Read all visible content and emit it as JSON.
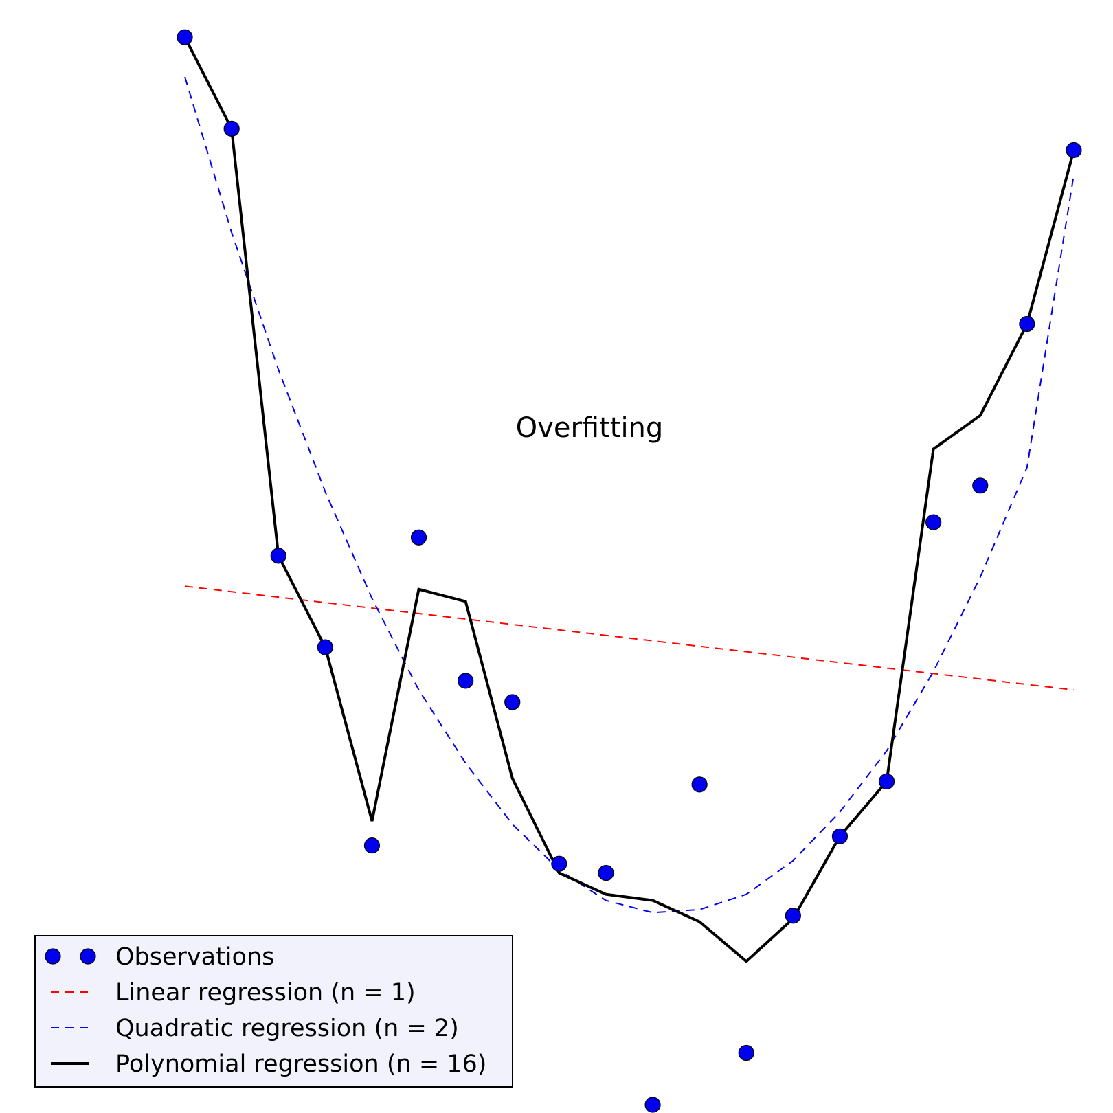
{
  "chart_data": {
    "type": "scatter",
    "title": "",
    "xlabel": "",
    "ylabel": "",
    "axes_visible": false,
    "grid": false,
    "xlim": [
      0.5,
      20.5
    ],
    "ylim": [
      -3.0,
      0.55
    ],
    "annotation": "Overfitting",
    "legend_position": "lower-left",
    "series": [
      {
        "name": "Observations",
        "kind": "markers",
        "color": "#0000ee",
        "x": [
          1,
          2,
          3,
          4,
          5,
          6,
          7,
          8,
          9,
          10,
          11,
          12,
          13,
          14,
          15,
          16,
          17,
          18,
          19,
          20
        ],
        "y": [
          0.5,
          0.2,
          -1.2,
          -1.5,
          -2.15,
          -1.14,
          -1.61,
          -1.68,
          -2.21,
          -2.24,
          -3.0,
          -1.95,
          -2.83,
          -2.38,
          -2.12,
          -1.94,
          -1.09,
          -0.97,
          -0.44,
          0.13
        ]
      },
      {
        "name": "Linear regression (n = 1)",
        "kind": "dashed-line",
        "color": "#ff0000",
        "x": [
          1,
          20
        ],
        "y": [
          -1.3,
          -1.64
        ]
      },
      {
        "name": "Quadratic regression (n = 2)",
        "kind": "dashed-line",
        "color": "#0000ee",
        "x": [
          1,
          2,
          3,
          4,
          5,
          6,
          7,
          8,
          9,
          10,
          11,
          12,
          13,
          14,
          15,
          16,
          17,
          18,
          19,
          20
        ],
        "y": [
          0.37,
          -0.14,
          -0.59,
          -0.99,
          -1.34,
          -1.64,
          -1.88,
          -2.08,
          -2.23,
          -2.33,
          -2.37,
          -2.36,
          -2.31,
          -2.2,
          -2.04,
          -1.84,
          -1.58,
          -1.27,
          -0.91,
          0.05
        ]
      },
      {
        "name": "Polynomial regression (n = 16)",
        "kind": "solid-line",
        "color": "#000000",
        "x": [
          1,
          2,
          3,
          4,
          5,
          6,
          7,
          8,
          9,
          10,
          11,
          12,
          13,
          14,
          15,
          16,
          17,
          18,
          19,
          20
        ],
        "y": [
          0.5,
          0.2,
          -1.2,
          -1.5,
          -2.07,
          -1.31,
          -1.35,
          -1.93,
          -2.24,
          -2.31,
          -2.33,
          -2.4,
          -2.53,
          -2.39,
          -2.12,
          -1.94,
          -0.85,
          -0.74,
          -0.44,
          0.13
        ]
      }
    ]
  }
}
